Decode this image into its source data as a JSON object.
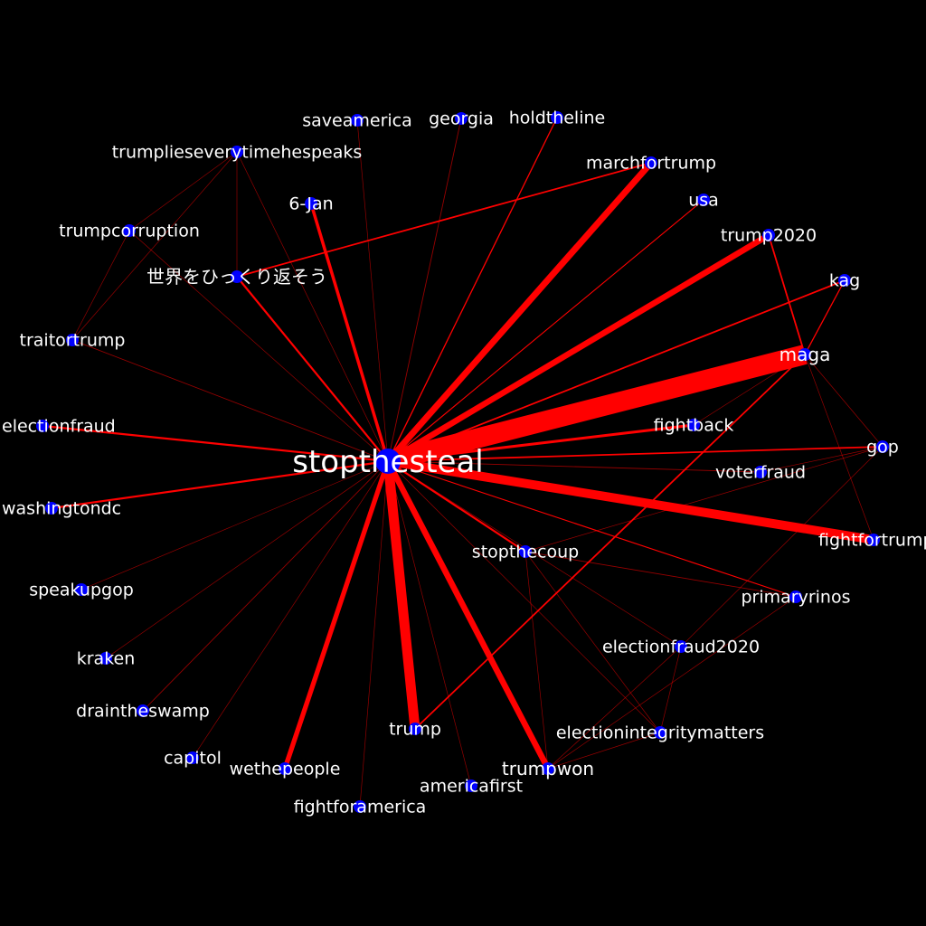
{
  "colors": {
    "background": "#000000",
    "edge": "#ff0000",
    "node": "#0000ff",
    "label": "#ffffff"
  },
  "nodes": [
    {
      "id": "stopthesteal",
      "label": "stopthesteal"
    },
    {
      "id": "maga",
      "label": "maga"
    },
    {
      "id": "trump",
      "label": "trump"
    },
    {
      "id": "fightfortrump",
      "label": "fightfortrump"
    },
    {
      "id": "marchfortrump",
      "label": "marchfortrump"
    },
    {
      "id": "trump2020",
      "label": "trump2020"
    },
    {
      "id": "trumpwon",
      "label": "trumpwon"
    },
    {
      "id": "wethepeople",
      "label": "wethepeople"
    },
    {
      "id": "6jan",
      "label": "6-Jan"
    },
    {
      "id": "sekai",
      "label": "世界をひっくり返そう"
    },
    {
      "id": "saveamerica",
      "label": "saveamerica"
    },
    {
      "id": "georgia",
      "label": "georgia"
    },
    {
      "id": "holdtheline",
      "label": "holdtheline"
    },
    {
      "id": "trumplies",
      "label": "trumplieseverytimehespeaks"
    },
    {
      "id": "usa",
      "label": "usa"
    },
    {
      "id": "trumpcorruption",
      "label": "trumpcorruption"
    },
    {
      "id": "kag",
      "label": "kag"
    },
    {
      "id": "traitortrump",
      "label": "traitortrump"
    },
    {
      "id": "electionfraud",
      "label": "electionfraud"
    },
    {
      "id": "fightback",
      "label": "fightback"
    },
    {
      "id": "gop",
      "label": "gop"
    },
    {
      "id": "voterfraud",
      "label": "voterfraud"
    },
    {
      "id": "washingtondc",
      "label": "washingtondc"
    },
    {
      "id": "stopthecoup",
      "label": "stopthecoup"
    },
    {
      "id": "speakupgop",
      "label": "speakupgop"
    },
    {
      "id": "primaryrinos",
      "label": "primaryrinos"
    },
    {
      "id": "electionfraud2020",
      "label": "electionfraud2020"
    },
    {
      "id": "kraken",
      "label": "kraken"
    },
    {
      "id": "draintheswamp",
      "label": "draintheswamp"
    },
    {
      "id": "electionintegritymatters",
      "label": "electionintegritymatters"
    },
    {
      "id": "capitol",
      "label": "capitol"
    },
    {
      "id": "americafirst",
      "label": "americafirst"
    },
    {
      "id": "fightforamerica",
      "label": "fightforamerica"
    }
  ],
  "edges": [
    {
      "source": "stopthesteal",
      "target": "maga",
      "weight": 10
    },
    {
      "source": "stopthesteal",
      "target": "trump",
      "weight": 5
    },
    {
      "source": "stopthesteal",
      "target": "fightfortrump",
      "weight": 4.5
    },
    {
      "source": "stopthesteal",
      "target": "marchfortrump",
      "weight": 3.2
    },
    {
      "source": "stopthesteal",
      "target": "trump2020",
      "weight": 3
    },
    {
      "source": "stopthesteal",
      "target": "trumpwon",
      "weight": 3
    },
    {
      "source": "stopthesteal",
      "target": "wethepeople",
      "weight": 2.4
    },
    {
      "source": "stopthesteal",
      "target": "6jan",
      "weight": 1.6
    },
    {
      "source": "stopthesteal",
      "target": "sekai",
      "weight": 1
    },
    {
      "source": "stopthesteal",
      "target": "electionfraud",
      "weight": 1
    },
    {
      "source": "stopthesteal",
      "target": "washingtondc",
      "weight": 1
    },
    {
      "source": "stopthesteal",
      "target": "fightback",
      "weight": 1.4
    },
    {
      "source": "stopthesteal",
      "target": "stopthecoup",
      "weight": 1
    },
    {
      "source": "stopthesteal",
      "target": "kag",
      "weight": 0.8
    },
    {
      "source": "stopthesteal",
      "target": "gop",
      "weight": 0.8
    },
    {
      "source": "stopthesteal",
      "target": "holdtheline",
      "weight": 0.6
    },
    {
      "source": "stopthesteal",
      "target": "usa",
      "weight": 0.5
    },
    {
      "source": "stopthesteal",
      "target": "voterfraud",
      "weight": 0.4
    },
    {
      "source": "stopthesteal",
      "target": "primaryrinos",
      "weight": 0.5
    },
    {
      "source": "stopthesteal",
      "target": "electionfraud2020",
      "weight": 0.3
    },
    {
      "source": "stopthesteal",
      "target": "electionintegritymatters",
      "weight": 0.3
    },
    {
      "source": "stopthesteal",
      "target": "americafirst",
      "weight": 0.3
    },
    {
      "source": "stopthesteal",
      "target": "fightforamerica",
      "weight": 0.3
    },
    {
      "source": "stopthesteal",
      "target": "capitol",
      "weight": 0.3
    },
    {
      "source": "stopthesteal",
      "target": "draintheswamp",
      "weight": 0.4
    },
    {
      "source": "stopthesteal",
      "target": "kraken",
      "weight": 0.3
    },
    {
      "source": "stopthesteal",
      "target": "speakupgop",
      "weight": 0.3
    },
    {
      "source": "stopthesteal",
      "target": "traitortrump",
      "weight": 0.4
    },
    {
      "source": "stopthesteal",
      "target": "trumplies",
      "weight": 0.3
    },
    {
      "source": "stopthesteal",
      "target": "georgia",
      "weight": 0.4
    },
    {
      "source": "stopthesteal",
      "target": "saveamerica",
      "weight": 0.3
    },
    {
      "source": "stopthesteal",
      "target": "trumpcorruption",
      "weight": 0.3
    },
    {
      "source": "sekai",
      "target": "marchfortrump",
      "weight": 0.8
    },
    {
      "source": "maga",
      "target": "trump",
      "weight": 0.8
    },
    {
      "source": "maga",
      "target": "trump2020",
      "weight": 0.8
    },
    {
      "source": "maga",
      "target": "kag",
      "weight": 0.6
    },
    {
      "source": "maga",
      "target": "gop",
      "weight": 0.3
    },
    {
      "source": "maga",
      "target": "fightfortrump",
      "weight": 0.3
    },
    {
      "source": "maga",
      "target": "fightback",
      "weight": 0.3
    },
    {
      "source": "trumplies",
      "target": "trumpcorruption",
      "weight": 0.3
    },
    {
      "source": "trumplies",
      "target": "traitortrump",
      "weight": 0.3
    },
    {
      "source": "trumplies",
      "target": "sekai",
      "weight": 0.3
    },
    {
      "source": "trumpcorruption",
      "target": "traitortrump",
      "weight": 0.3
    },
    {
      "source": "stopthecoup",
      "target": "primaryrinos",
      "weight": 0.4
    },
    {
      "source": "stopthecoup",
      "target": "electionintegritymatters",
      "weight": 0.3
    },
    {
      "source": "stopthecoup",
      "target": "trumpwon",
      "weight": 0.3
    },
    {
      "source": "stopthecoup",
      "target": "gop",
      "weight": 0.3
    },
    {
      "source": "primaryrinos",
      "target": "trumpwon",
      "weight": 0.3
    },
    {
      "source": "electionfraud2020",
      "target": "electionintegritymatters",
      "weight": 0.3
    },
    {
      "source": "electionfraud2020",
      "target": "trumpwon",
      "weight": 0.3
    },
    {
      "source": "trumpwon",
      "target": "electionintegritymatters",
      "weight": 0.3
    },
    {
      "source": "gop",
      "target": "electionfraud2020",
      "weight": 0.3
    },
    {
      "source": "gop",
      "target": "voterfraud",
      "weight": 0.3
    }
  ]
}
